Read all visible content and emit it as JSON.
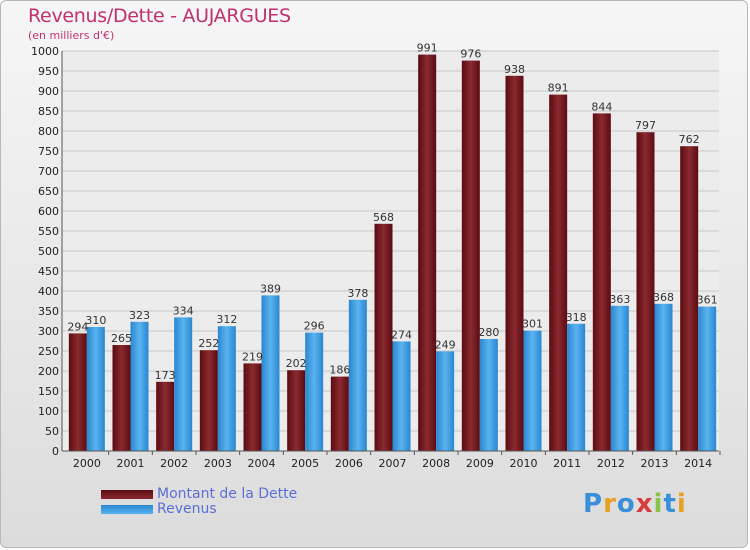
{
  "header": {
    "title": "Revenus/Dette - AUJARGUES",
    "subtitle": "(en milliers d'€)"
  },
  "colors": {
    "debt": "#7a1a1f",
    "revenue": "#3d9de2",
    "title": "#c0316e",
    "legend_text": "#5b6fd6"
  },
  "legend": {
    "debt_label": "Montant de la Dette",
    "revenue_label": "Revenus"
  },
  "logo": {
    "text": "Proxiti"
  },
  "chart_data": {
    "type": "bar",
    "title": "Revenus/Dette - AUJARGUES",
    "ylabel": "(en milliers d'€)",
    "categories": [
      "2000",
      "2001",
      "2002",
      "2003",
      "2004",
      "2005",
      "2006",
      "2007",
      "2008",
      "2009",
      "2010",
      "2011",
      "2012",
      "2013",
      "2014"
    ],
    "series": [
      {
        "name": "Montant de la Dette",
        "values": [
          294,
          265,
          173,
          252,
          219,
          202,
          186,
          568,
          991,
          976,
          938,
          891,
          844,
          797,
          762
        ]
      },
      {
        "name": "Revenus",
        "values": [
          310,
          323,
          334,
          312,
          389,
          296,
          378,
          274,
          249,
          280,
          301,
          318,
          363,
          368,
          361
        ]
      }
    ],
    "ylim": [
      0,
      1000
    ],
    "yticks": [
      0,
      50,
      100,
      150,
      200,
      250,
      300,
      350,
      400,
      450,
      500,
      550,
      600,
      650,
      700,
      750,
      800,
      850,
      900,
      950,
      1000
    ],
    "grid": true,
    "legend_position": "bottom-left"
  }
}
